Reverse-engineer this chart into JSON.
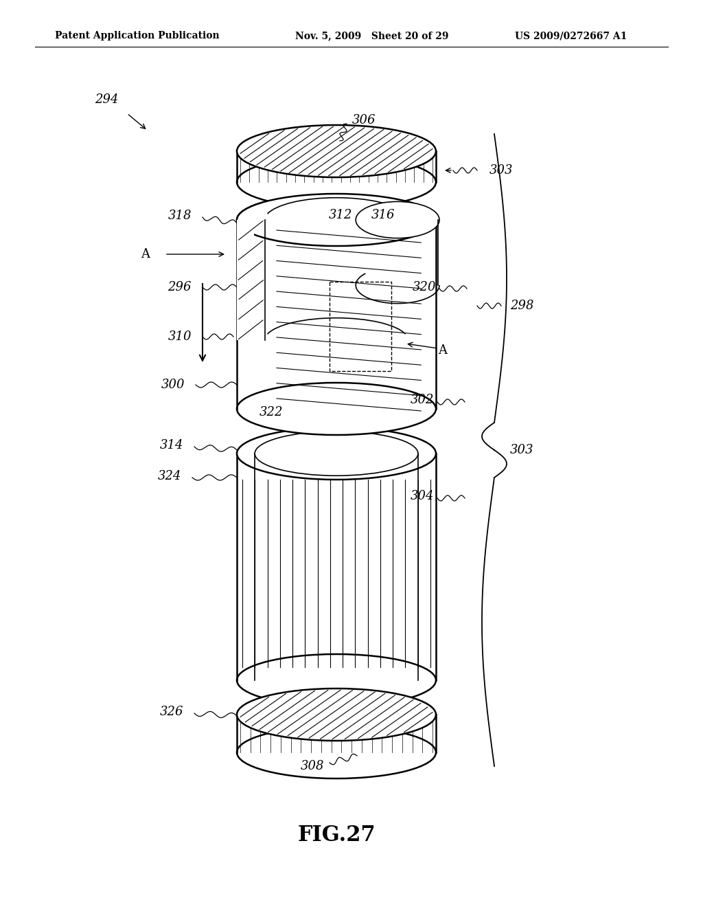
{
  "title": "FIG.27",
  "header_left": "Patent Application Publication",
  "header_mid": "Nov. 5, 2009   Sheet 20 of 29",
  "header_right": "US 2009/0272667 A1",
  "bg_color": "#ffffff",
  "line_color": "#000000",
  "fig_caption": "FIG.27"
}
